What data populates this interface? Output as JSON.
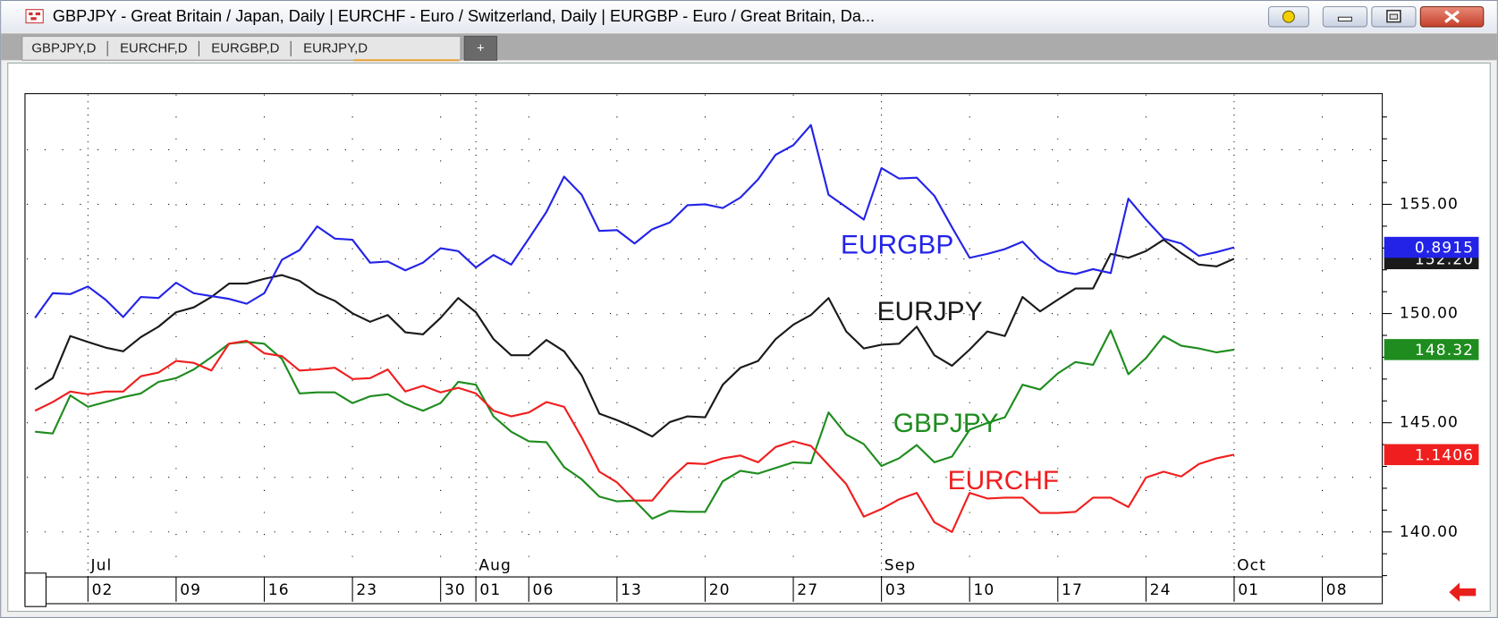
{
  "window": {
    "title": "GBPJPY - Great Britain / Japan, Daily  |  EURCHF - Euro / Switzerland, Daily  |  EURGBP - Euro / Great Britain, Da...",
    "tabs": [
      "GBPJPY,D",
      "EURCHF,D",
      "EURGBP,D",
      "EURJPY,D"
    ],
    "new_tab": "+"
  },
  "chart_data": {
    "type": "line",
    "xlim": [
      -0.57,
      76.4
    ],
    "ylim": [
      137.94,
      159.72
    ],
    "yticks": [
      {
        "value": 140,
        "label": "140.00"
      },
      {
        "value": 145,
        "label": "145.00"
      },
      {
        "value": 150,
        "label": "150.00"
      },
      {
        "value": 155,
        "label": "155.00"
      }
    ],
    "xticks": [
      {
        "value": 3,
        "label": "02"
      },
      {
        "value": 8,
        "label": "09"
      },
      {
        "value": 13,
        "label": "16"
      },
      {
        "value": 18,
        "label": "23"
      },
      {
        "value": 23,
        "label": "30"
      },
      {
        "value": 25,
        "label": "01"
      },
      {
        "value": 28,
        "label": "06"
      },
      {
        "value": 33,
        "label": "13"
      },
      {
        "value": 38,
        "label": "20"
      },
      {
        "value": 43,
        "label": "27"
      },
      {
        "value": 48,
        "label": "03"
      },
      {
        "value": 53,
        "label": "10"
      },
      {
        "value": 58,
        "label": "17"
      },
      {
        "value": 63,
        "label": "24"
      },
      {
        "value": 68,
        "label": "01"
      },
      {
        "value": 73,
        "label": "08"
      }
    ],
    "month_ticks": [
      {
        "value": 3,
        "label": "Jul"
      },
      {
        "value": 25,
        "label": "Aug"
      },
      {
        "value": 48,
        "label": "Sep"
      },
      {
        "value": 68,
        "label": "Oct"
      }
    ],
    "grid": true,
    "series": [
      {
        "name": "EURJPY",
        "color": "#1a1a1a",
        "last_price": "152.20",
        "values": [
          146.52,
          147.04,
          148.97,
          148.7,
          148.44,
          148.27,
          148.92,
          149.4,
          150.06,
          150.28,
          150.76,
          151.37,
          151.37,
          151.59,
          151.76,
          151.5,
          150.93,
          150.58,
          150.01,
          149.62,
          149.93,
          149.14,
          149.05,
          149.8,
          150.71,
          150.06,
          148.83,
          148.09,
          148.09,
          148.79,
          148.27,
          147.17,
          145.42,
          145.12,
          144.77,
          144.37,
          145.03,
          145.29,
          145.25,
          146.74,
          147.52,
          147.83,
          148.83,
          149.49,
          149.93,
          150.71,
          149.18,
          148.4,
          148.57,
          148.62,
          149.4,
          148.09,
          147.61,
          148.35,
          149.18,
          148.97,
          150.76,
          150.1,
          150.63,
          151.15,
          151.15,
          152.73,
          152.55,
          152.86,
          153.38,
          152.77,
          152.24,
          152.16,
          152.51
        ]
      },
      {
        "name": "EURGBP",
        "color": "#2323e8",
        "last_price": "0.8915",
        "values": [
          149.8,
          150.93,
          150.89,
          151.24,
          150.63,
          149.84,
          150.76,
          150.71,
          151.41,
          150.93,
          150.8,
          150.67,
          150.45,
          150.93,
          152.46,
          152.9,
          153.99,
          153.43,
          153.38,
          152.33,
          152.38,
          151.98,
          152.33,
          152.99,
          152.86,
          152.11,
          152.68,
          152.24,
          153.43,
          154.65,
          156.27,
          155.44,
          153.78,
          153.82,
          153.21,
          153.86,
          154.17,
          154.96,
          155.0,
          154.83,
          155.31,
          156.14,
          157.27,
          157.71,
          158.63,
          155.44,
          154.87,
          154.3,
          156.66,
          156.18,
          156.22,
          155.39,
          153.95,
          152.55,
          152.73,
          152.95,
          153.29,
          152.46,
          151.94,
          151.81,
          152.03,
          151.85,
          155.26,
          154.3,
          153.43,
          153.21,
          152.64,
          152.81,
          153.03
        ]
      },
      {
        "name": "GBPJPY",
        "color": "#1e8c1e",
        "last_price": "148.32",
        "values": [
          144.59,
          144.51,
          146.25,
          145.73,
          145.95,
          146.17,
          146.34,
          146.87,
          147.04,
          147.44,
          148.0,
          148.62,
          148.7,
          148.62,
          147.92,
          146.34,
          146.39,
          146.39,
          145.9,
          146.21,
          146.3,
          145.86,
          145.55,
          145.9,
          146.87,
          146.74,
          145.29,
          144.59,
          144.15,
          144.11,
          142.97,
          142.41,
          141.62,
          141.4,
          141.44,
          140.61,
          140.96,
          140.92,
          140.92,
          142.32,
          142.8,
          142.67,
          142.93,
          143.19,
          143.15,
          145.47,
          144.46,
          144.02,
          143.02,
          143.37,
          143.98,
          143.19,
          143.45,
          144.68,
          144.99,
          145.25,
          146.74,
          146.52,
          147.26,
          147.78,
          147.65,
          149.23,
          147.22,
          147.96,
          148.97,
          148.53,
          148.4,
          148.22,
          148.35
        ]
      },
      {
        "name": "EURCHF",
        "color": "#f01e1e",
        "last_price": "1.1406",
        "values": [
          145.55,
          145.95,
          146.43,
          146.3,
          146.43,
          146.43,
          147.13,
          147.3,
          147.83,
          147.74,
          147.39,
          148.62,
          148.75,
          148.18,
          148.05,
          147.39,
          147.44,
          147.52,
          147.0,
          147.04,
          147.44,
          146.43,
          146.69,
          146.39,
          146.6,
          146.34,
          145.55,
          145.29,
          145.47,
          145.95,
          145.73,
          144.33,
          142.76,
          142.27,
          141.44,
          141.44,
          142.41,
          143.15,
          143.11,
          143.37,
          143.5,
          143.19,
          143.89,
          144.15,
          143.94,
          143.06,
          142.19,
          140.7,
          141.05,
          141.49,
          141.79,
          140.44,
          140.0,
          141.79,
          141.53,
          141.57,
          141.57,
          140.87,
          140.87,
          140.92,
          141.57,
          141.57,
          141.14,
          142.49,
          142.76,
          142.54,
          143.11,
          143.37,
          143.54
        ]
      }
    ]
  }
}
